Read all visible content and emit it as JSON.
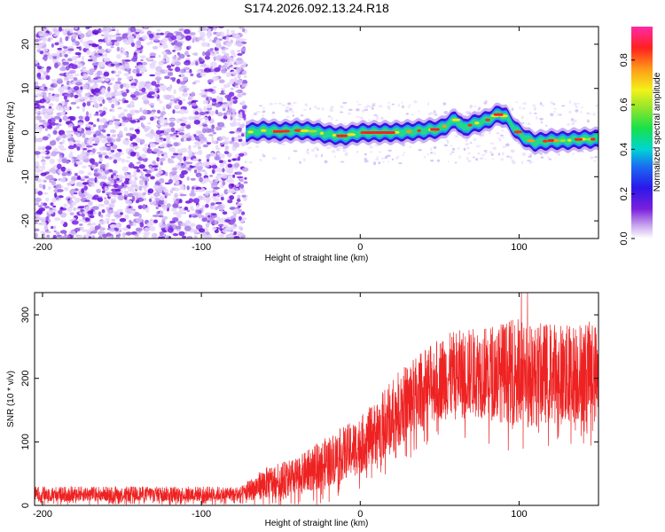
{
  "chart_data": [
    {
      "type": "heatmap",
      "title": "S174.2026.092.13.24.R18",
      "xlabel": "Height of straight line (km)",
      "ylabel": "Frequency (Hz)",
      "xlim": [
        -205,
        150
      ],
      "ylim": [
        -24,
        24
      ],
      "xticks": [
        -200,
        -100,
        0,
        100
      ],
      "yticks": [
        -20,
        -10,
        0,
        10,
        20
      ],
      "noise_region_x": [
        -205,
        -72
      ],
      "ridge": {
        "x": [
          -72,
          -60,
          -50,
          -40,
          -30,
          -20,
          -10,
          0,
          10,
          20,
          30,
          40,
          50,
          55,
          60,
          65,
          70,
          80,
          85,
          88,
          92,
          98,
          105,
          110,
          120,
          130,
          140,
          150
        ],
        "freq": [
          0,
          0.5,
          0.2,
          0.5,
          0.3,
          -0.5,
          -0.8,
          0,
          0,
          0,
          0.2,
          0.5,
          0.8,
          1.8,
          3,
          1,
          1.8,
          2.8,
          3.8,
          4.2,
          3.5,
          0.5,
          -1.5,
          -2.2,
          -1.8,
          -1.8,
          -1.5,
          -1.5
        ]
      },
      "colorbar": {
        "label": "Normalized spectral amplitude",
        "range": [
          0,
          0.95
        ],
        "ticks": [
          0.0,
          0.2,
          0.4,
          0.6,
          0.8
        ]
      }
    },
    {
      "type": "line",
      "xlabel": "Height of straight line (km)",
      "ylabel": "SNR (10 * v/v)",
      "xlim": [
        -205,
        150
      ],
      "ylim": [
        0,
        335
      ],
      "xticks": [
        -200,
        -100,
        0,
        100
      ],
      "yticks": [
        0,
        100,
        200,
        300
      ],
      "color": "#ee2222",
      "envelope": {
        "x": [
          -205,
          -150,
          -100,
          -75,
          -60,
          -40,
          -20,
          0,
          10,
          20,
          30,
          40,
          50,
          60,
          70,
          80,
          90,
          100,
          110,
          120,
          130,
          140,
          150
        ],
        "mean": [
          18,
          18,
          18,
          18,
          35,
          45,
          70,
          95,
          115,
          140,
          165,
          185,
          200,
          205,
          210,
          210,
          210,
          210,
          205,
          210,
          205,
          210,
          210
        ],
        "spread": [
          12,
          12,
          12,
          12,
          25,
          30,
          40,
          45,
          50,
          60,
          60,
          60,
          65,
          70,
          70,
          75,
          80,
          85,
          80,
          80,
          80,
          80,
          80
        ]
      }
    }
  ]
}
